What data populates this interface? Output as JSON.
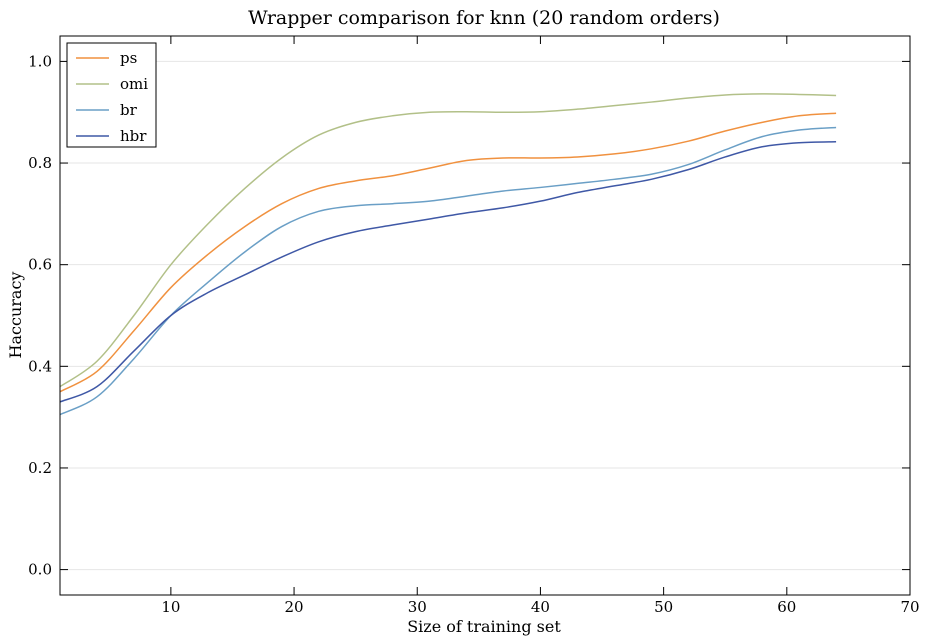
{
  "chart_data": {
    "type": "line",
    "title": "Wrapper comparison for knn (20 random orders)",
    "xlabel": "Size of training set",
    "ylabel": "Haccuracy",
    "xlim": [
      1,
      70
    ],
    "ylim": [
      -0.05,
      1.05
    ],
    "xticks": [
      10,
      20,
      30,
      40,
      50,
      60,
      70
    ],
    "yticks": [
      0.0,
      0.2,
      0.4,
      0.6,
      0.8,
      1.0
    ],
    "xtick_labels": [
      "10",
      "20",
      "30",
      "40",
      "50",
      "60",
      "70"
    ],
    "ytick_labels": [
      "0.0",
      "0.2",
      "0.4",
      "0.6",
      "0.8",
      "1.0"
    ],
    "grid": "horizontal",
    "legend_position": "top-left",
    "x": [
      1,
      4,
      7,
      10,
      13,
      16,
      19,
      22,
      25,
      28,
      31,
      34,
      37,
      40,
      43,
      46,
      49,
      52,
      55,
      58,
      61,
      64
    ],
    "series": [
      {
        "name": "ps",
        "color": "#f0913f",
        "values": [
          0.35,
          0.39,
          0.47,
          0.555,
          0.62,
          0.675,
          0.72,
          0.75,
          0.765,
          0.775,
          0.79,
          0.805,
          0.81,
          0.81,
          0.812,
          0.818,
          0.828,
          0.843,
          0.863,
          0.88,
          0.893,
          0.898
        ]
      },
      {
        "name": "omi",
        "color": "#b2c088",
        "values": [
          0.36,
          0.41,
          0.5,
          0.6,
          0.68,
          0.75,
          0.81,
          0.855,
          0.88,
          0.893,
          0.9,
          0.901,
          0.9,
          0.901,
          0.906,
          0.913,
          0.92,
          0.928,
          0.934,
          0.936,
          0.935,
          0.933
        ]
      },
      {
        "name": "br",
        "color": "#6a9fc6",
        "values": [
          0.305,
          0.34,
          0.415,
          0.5,
          0.565,
          0.625,
          0.675,
          0.705,
          0.716,
          0.72,
          0.725,
          0.735,
          0.745,
          0.752,
          0.76,
          0.768,
          0.778,
          0.797,
          0.826,
          0.852,
          0.865,
          0.87
        ]
      },
      {
        "name": "hbr",
        "color": "#3f58a6",
        "values": [
          0.33,
          0.36,
          0.43,
          0.5,
          0.545,
          0.58,
          0.615,
          0.645,
          0.665,
          0.678,
          0.69,
          0.702,
          0.712,
          0.725,
          0.742,
          0.755,
          0.768,
          0.787,
          0.812,
          0.832,
          0.84,
          0.842
        ]
      }
    ]
  }
}
